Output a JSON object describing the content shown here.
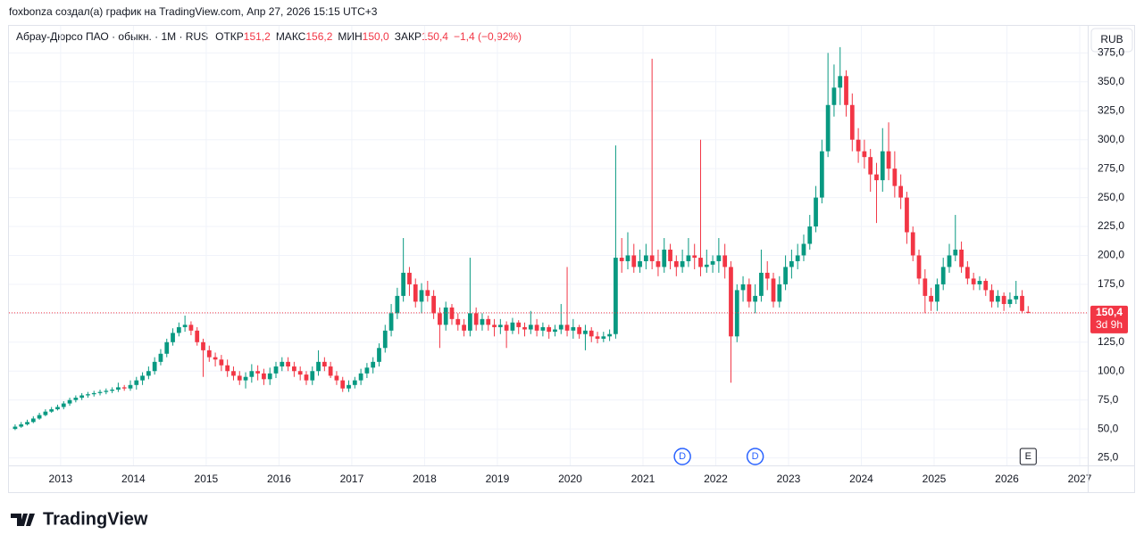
{
  "header": {
    "attribution": "foxbonza создал(а) график на TradingView.com, Апр 27, 2026 15:15 UTC+3",
    "logo": "TradingView"
  },
  "chart_data": {
    "type": "candlestick",
    "title": "Абрау-Дюрсо ПАО · обыкн. · 1M · RUS",
    "ohlc_legend": [
      {
        "name": "ОТКР",
        "value": {
          "value": 151.2,
          "label": "151,2"
        }
      },
      {
        "name": "МАКС",
        "value": {
          "value": 156.2,
          "label": "156,2"
        }
      },
      {
        "name": "МИН",
        "value": {
          "value": 150.0,
          "label": "150,0"
        }
      },
      {
        "name": "ЗАКР",
        "value": {
          "value": 150.4,
          "label": "150,4"
        }
      }
    ],
    "change": "−1,4 (−0,92%)",
    "currency": "RUB",
    "up_color": "#089981",
    "down_color": "#f23645",
    "x": [
      "2012-05",
      "2012-06",
      "2012-07",
      "2012-08",
      "2012-09",
      "2012-10",
      "2012-11",
      "2012-12",
      "2013-01",
      "2013-02",
      "2013-03",
      "2013-04",
      "2013-05",
      "2013-06",
      "2013-07",
      "2013-08",
      "2013-09",
      "2013-10",
      "2013-11",
      "2013-12",
      "2014-01",
      "2014-02",
      "2014-03",
      "2014-04",
      "2014-05",
      "2014-06",
      "2014-07",
      "2014-08",
      "2014-09",
      "2014-10",
      "2014-11",
      "2014-12",
      "2015-01",
      "2015-02",
      "2015-03",
      "2015-04",
      "2015-05",
      "2015-06",
      "2015-07",
      "2015-08",
      "2015-09",
      "2015-10",
      "2015-11",
      "2015-12",
      "2016-01",
      "2016-02",
      "2016-03",
      "2016-04",
      "2016-05",
      "2016-06",
      "2016-07",
      "2016-08",
      "2016-09",
      "2016-10",
      "2016-11",
      "2016-12",
      "2017-01",
      "2017-02",
      "2017-03",
      "2017-04",
      "2017-05",
      "2017-06",
      "2017-07",
      "2017-08",
      "2017-09",
      "2017-10",
      "2017-11",
      "2017-12",
      "2018-01",
      "2018-02",
      "2018-03",
      "2018-04",
      "2018-05",
      "2018-06",
      "2018-07",
      "2018-08",
      "2018-09",
      "2018-10",
      "2018-11",
      "2018-12",
      "2019-01",
      "2019-02",
      "2019-03",
      "2019-04",
      "2019-05",
      "2019-06",
      "2019-07",
      "2019-08",
      "2019-09",
      "2019-10",
      "2019-11",
      "2019-12",
      "2020-01",
      "2020-02",
      "2020-03",
      "2020-04",
      "2020-05",
      "2020-06",
      "2020-07",
      "2020-08",
      "2020-09",
      "2020-10",
      "2020-11",
      "2020-12",
      "2021-01",
      "2021-02",
      "2021-03",
      "2021-04",
      "2021-05",
      "2021-06",
      "2021-07",
      "2021-08",
      "2021-09",
      "2021-10",
      "2021-11",
      "2021-12",
      "2022-01",
      "2022-02",
      "2022-03",
      "2022-04",
      "2022-05",
      "2022-06",
      "2022-07",
      "2022-08",
      "2022-09",
      "2022-10",
      "2022-11",
      "2022-12",
      "2023-01",
      "2023-02",
      "2023-03",
      "2023-04",
      "2023-05",
      "2023-06",
      "2023-07",
      "2023-08",
      "2023-09",
      "2023-10",
      "2023-11",
      "2023-12",
      "2024-01",
      "2024-02",
      "2024-03",
      "2024-04",
      "2024-05",
      "2024-06",
      "2024-07",
      "2024-08",
      "2024-09",
      "2024-10",
      "2024-11",
      "2024-12",
      "2025-01",
      "2025-02",
      "2025-03",
      "2025-04",
      "2025-05",
      "2025-06",
      "2025-07",
      "2025-08",
      "2025-09",
      "2025-10",
      "2025-11",
      "2025-12",
      "2026-01",
      "2026-02",
      "2026-03",
      "2026-04"
    ],
    "open": [
      50,
      52,
      54,
      56,
      59,
      62,
      65,
      67,
      69,
      72,
      75,
      77,
      79,
      80,
      81,
      82,
      83,
      84,
      86,
      85,
      88,
      92,
      96,
      100,
      108,
      115,
      125,
      133,
      138,
      140,
      135,
      125,
      118,
      112,
      110,
      105,
      100,
      96,
      92,
      95,
      100,
      98,
      93,
      98,
      104,
      108,
      104,
      100,
      97,
      92,
      100,
      108,
      104,
      96,
      92,
      85,
      88,
      92,
      98,
      103,
      108,
      120,
      135,
      150,
      165,
      185,
      175,
      160,
      170,
      165,
      150,
      140,
      155,
      145,
      140,
      135,
      150,
      140,
      145,
      140,
      138,
      140,
      135,
      142,
      138,
      136,
      140,
      135,
      138,
      134,
      136,
      140,
      135,
      138,
      132,
      135,
      130,
      128,
      130,
      132,
      198,
      195,
      200,
      190,
      195,
      200,
      195,
      190,
      205,
      195,
      190,
      195,
      200,
      198,
      190,
      192,
      195,
      200,
      190,
      130,
      170,
      175,
      160,
      165,
      185,
      180,
      160,
      175,
      190,
      195,
      200,
      210,
      225,
      250,
      290,
      330,
      345,
      355,
      330,
      300,
      290,
      285,
      270,
      265,
      290,
      275,
      260,
      250,
      220,
      200,
      180,
      165,
      160,
      175,
      190,
      200,
      205,
      190,
      180,
      175,
      178,
      170,
      160,
      165,
      158,
      162,
      165,
      151.2
    ],
    "high": [
      54,
      56,
      58,
      61,
      64,
      67,
      69,
      71,
      74,
      77,
      79,
      81,
      82,
      83,
      84,
      85,
      86,
      90,
      88,
      92,
      95,
      99,
      104,
      112,
      119,
      128,
      137,
      142,
      148,
      143,
      138,
      128,
      122,
      116,
      114,
      110,
      104,
      100,
      99,
      106,
      105,
      102,
      103,
      108,
      112,
      112,
      108,
      104,
      100,
      104,
      118,
      112,
      108,
      100,
      95,
      92,
      95,
      102,
      107,
      112,
      124,
      140,
      158,
      172,
      215,
      190,
      180,
      176,
      178,
      170,
      155,
      160,
      158,
      150,
      145,
      198,
      155,
      150,
      148,
      145,
      145,
      143,
      146,
      144,
      142,
      152,
      145,
      142,
      140,
      140,
      158,
      190,
      145,
      140,
      140,
      138,
      134,
      134,
      136,
      295,
      215,
      220,
      210,
      205,
      210,
      370,
      205,
      215,
      210,
      200,
      205,
      215,
      210,
      300,
      205,
      200,
      215,
      210,
      195,
      175,
      182,
      180,
      175,
      205,
      195,
      185,
      182,
      200,
      205,
      210,
      218,
      235,
      260,
      300,
      375,
      365,
      380,
      360,
      340,
      310,
      300,
      292,
      280,
      310,
      315,
      290,
      270,
      255,
      225,
      205,
      188,
      172,
      180,
      198,
      210,
      235,
      212,
      195,
      185,
      182,
      180,
      175,
      170,
      168,
      168,
      178,
      170,
      156.2
    ],
    "low": [
      49,
      51,
      53,
      55,
      58,
      61,
      64,
      66,
      67,
      70,
      73,
      75,
      77,
      78,
      79,
      80,
      81,
      82,
      83,
      83,
      84,
      88,
      93,
      97,
      105,
      112,
      122,
      130,
      134,
      131,
      122,
      95,
      108,
      104,
      100,
      95,
      92,
      88,
      85,
      90,
      92,
      88,
      88,
      94,
      100,
      100,
      95,
      92,
      88,
      88,
      96,
      100,
      94,
      88,
      82,
      82,
      85,
      88,
      94,
      98,
      104,
      116,
      130,
      145,
      160,
      165,
      155,
      150,
      160,
      145,
      120,
      135,
      140,
      135,
      130,
      130,
      135,
      135,
      135,
      130,
      132,
      120,
      132,
      132,
      130,
      132,
      130,
      130,
      128,
      130,
      132,
      130,
      128,
      128,
      118,
      125,
      124,
      125,
      126,
      128,
      185,
      188,
      185,
      185,
      188,
      188,
      182,
      185,
      188,
      182,
      185,
      190,
      188,
      182,
      185,
      185,
      185,
      180,
      90,
      125,
      160,
      155,
      150,
      160,
      170,
      155,
      155,
      170,
      180,
      188,
      195,
      205,
      220,
      245,
      285,
      320,
      330,
      320,
      290,
      280,
      275,
      255,
      228,
      255,
      265,
      250,
      240,
      210,
      195,
      175,
      150,
      152,
      152,
      170,
      185,
      195,
      185,
      175,
      170,
      170,
      165,
      155,
      155,
      152,
      155,
      158,
      150,
      150.0
    ],
    "close": [
      52,
      54,
      56,
      59,
      62,
      65,
      67,
      69,
      72,
      75,
      77,
      79,
      80,
      81,
      82,
      83,
      84,
      86,
      85,
      88,
      92,
      96,
      100,
      108,
      115,
      125,
      133,
      138,
      140,
      135,
      125,
      118,
      112,
      110,
      105,
      100,
      96,
      92,
      95,
      100,
      98,
      93,
      98,
      104,
      108,
      104,
      100,
      97,
      92,
      100,
      108,
      104,
      96,
      92,
      85,
      88,
      92,
      98,
      103,
      108,
      120,
      135,
      150,
      165,
      185,
      175,
      160,
      170,
      165,
      150,
      140,
      155,
      145,
      140,
      135,
      150,
      140,
      145,
      140,
      138,
      140,
      135,
      142,
      138,
      136,
      140,
      135,
      138,
      134,
      136,
      140,
      135,
      138,
      132,
      135,
      130,
      128,
      130,
      132,
      198,
      195,
      200,
      190,
      195,
      200,
      195,
      190,
      205,
      195,
      190,
      195,
      200,
      198,
      190,
      192,
      195,
      200,
      190,
      130,
      170,
      175,
      160,
      165,
      185,
      180,
      160,
      175,
      190,
      195,
      200,
      210,
      225,
      250,
      290,
      330,
      345,
      355,
      330,
      300,
      290,
      285,
      270,
      265,
      290,
      275,
      260,
      250,
      220,
      200,
      180,
      165,
      160,
      175,
      190,
      200,
      205,
      190,
      180,
      175,
      178,
      170,
      160,
      165,
      158,
      162,
      165,
      152,
      150.4
    ],
    "last_price": {
      "value": 150.4,
      "label": "150,4"
    },
    "countdown": "3d 9h",
    "events": [
      {
        "label": "D",
        "x": "2021-07"
      },
      {
        "label": "D",
        "x": "2022-07"
      },
      {
        "label": "E",
        "x": "2026-04"
      }
    ],
    "xlim": [
      2012.29,
      2027.11
    ],
    "xticks": [
      2013,
      2014,
      2015,
      2016,
      2017,
      2018,
      2019,
      2020,
      2021,
      2022,
      2023,
      2024,
      2025,
      2026,
      2027
    ],
    "ylim": [
      18.5,
      398.4
    ],
    "yticks": [
      {
        "value": 25,
        "label": "25,0"
      },
      {
        "value": 50,
        "label": "50,0"
      },
      {
        "value": 75,
        "label": "75,0"
      },
      {
        "value": 100,
        "label": "100,0"
      },
      {
        "value": 125,
        "label": "125,0"
      },
      {
        "value": 150,
        "label": "150,0"
      },
      {
        "value": 175,
        "label": "175,0"
      },
      {
        "value": 200,
        "label": "200,0"
      },
      {
        "value": 225,
        "label": "225,0"
      },
      {
        "value": 250,
        "label": "250,0"
      },
      {
        "value": 275,
        "label": "275,0"
      },
      {
        "value": 300,
        "label": "300,0"
      },
      {
        "value": 325,
        "label": "325,0"
      },
      {
        "value": 350,
        "label": "350,0"
      },
      {
        "value": 375,
        "label": "375,0"
      }
    ],
    "grid": true
  }
}
